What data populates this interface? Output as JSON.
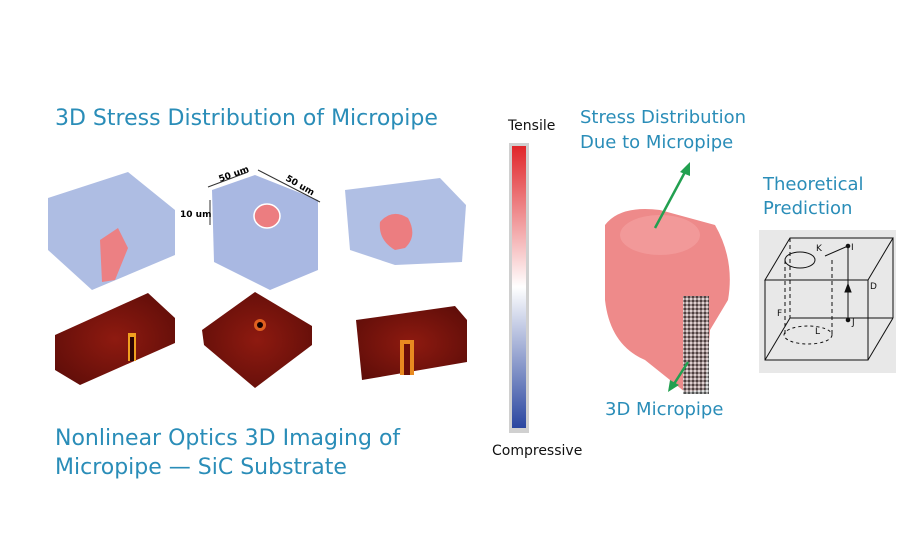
{
  "left_panel": {
    "title": "3D Stress Distribution of Micropipe",
    "dimensions": {
      "width": "50 um",
      "depth": "50 um",
      "height": "10 um"
    },
    "caption_line1": "Nonlinear Optics 3D Imaging of",
    "caption_line2": "Micropipe — SiC Substrate"
  },
  "colorbar": {
    "top_label": "Tensile",
    "bottom_label": "Compressive",
    "colors": {
      "top": "#e0262a",
      "middle": "#ffffff",
      "bottom": "#2a46a0"
    }
  },
  "right_panel": {
    "stress_label_line1": "Stress Distribution",
    "stress_label_line2": "Due to Micropipe",
    "micropipe_label": "3D Micropipe",
    "theory_label_line1": "Theoretical",
    "theory_label_line2": "Prediction",
    "diagram_labels": {
      "k": "K",
      "i": "I",
      "d": "D",
      "f": "F",
      "j": "J",
      "l": "L"
    }
  },
  "colors": {
    "accent_text": "#2a8db8",
    "arrow": "#22a050",
    "stress_blue": "#aab8e0",
    "stress_red": "#ec7d80",
    "shg_red": "#7a1410"
  }
}
